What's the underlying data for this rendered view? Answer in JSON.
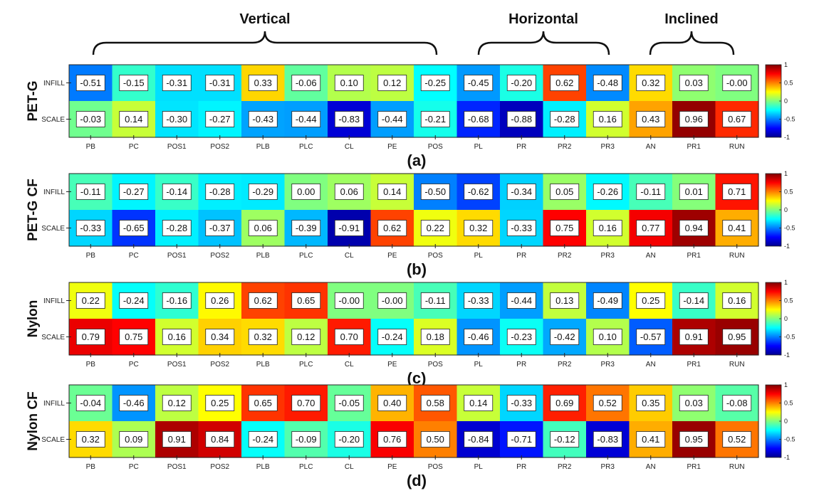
{
  "header": {
    "groups": [
      {
        "label": "Vertical"
      },
      {
        "label": "Horizontal"
      },
      {
        "label": "Inclined"
      }
    ]
  },
  "colors": {
    "colormap": "jet",
    "frame": "#222222"
  },
  "chart_data": [
    {
      "type": "heatmap",
      "panel_label": "(a)",
      "material": "PET-G",
      "x_categories": [
        "PB",
        "PC",
        "POS1",
        "POS2",
        "PLB",
        "PLC",
        "CL",
        "PE",
        "POS",
        "PL",
        "PR",
        "PR2",
        "PR3",
        "AN",
        "PR1",
        "RUN"
      ],
      "y_categories": [
        "INFILL",
        "SCALE"
      ],
      "values": [
        [
          -0.51,
          -0.15,
          -0.31,
          -0.31,
          0.33,
          -0.06,
          0.1,
          0.12,
          -0.25,
          -0.45,
          -0.2,
          0.62,
          -0.48,
          0.32,
          0.03,
          -0.0
        ],
        [
          -0.03,
          0.14,
          -0.3,
          -0.27,
          -0.43,
          -0.44,
          -0.83,
          -0.44,
          -0.21,
          -0.68,
          -0.88,
          -0.28,
          0.16,
          0.43,
          0.96,
          0.67
        ]
      ],
      "value_labels": [
        [
          "-0.51",
          "-0.15",
          "-0.31",
          "-0.31",
          "0.33",
          "-0.06",
          "0.10",
          "0.12",
          "-0.25",
          "-0.45",
          "-0.20",
          "0.62",
          "-0.48",
          "0.32",
          "0.03",
          "-0.00"
        ],
        [
          "-0.03",
          "0.14",
          "-0.30",
          "-0.27",
          "-0.43",
          "-0.44",
          "-0.83",
          "-0.44",
          "-0.21",
          "-0.68",
          "-0.88",
          "-0.28",
          "0.16",
          "0.43",
          "0.96",
          "0.67"
        ]
      ],
      "colorbar": {
        "range": [
          -1,
          1
        ],
        "ticks": [
          "1",
          "0.5",
          "0",
          "-0.5",
          "-1"
        ]
      }
    },
    {
      "type": "heatmap",
      "panel_label": "(b)",
      "material": "PET-G CF",
      "x_categories": [
        "PB",
        "PC",
        "POS1",
        "POS2",
        "PLB",
        "PLC",
        "CL",
        "PE",
        "POS",
        "PL",
        "PR",
        "PR2",
        "PR3",
        "AN",
        "PR1",
        "RUN"
      ],
      "y_categories": [
        "INFILL",
        "SCALE"
      ],
      "values": [
        [
          -0.11,
          -0.27,
          -0.14,
          -0.28,
          -0.29,
          0.0,
          0.06,
          0.14,
          -0.5,
          -0.62,
          -0.34,
          0.05,
          -0.26,
          -0.11,
          0.01,
          0.71
        ],
        [
          -0.33,
          -0.65,
          -0.28,
          -0.37,
          0.06,
          -0.39,
          -0.91,
          0.62,
          0.22,
          0.32,
          -0.33,
          0.75,
          0.16,
          0.77,
          0.94,
          0.41
        ]
      ],
      "value_labels": [
        [
          "-0.11",
          "-0.27",
          "-0.14",
          "-0.28",
          "-0.29",
          "0.00",
          "0.06",
          "0.14",
          "-0.50",
          "-0.62",
          "-0.34",
          "0.05",
          "-0.26",
          "-0.11",
          "0.01",
          "0.71"
        ],
        [
          "-0.33",
          "-0.65",
          "-0.28",
          "-0.37",
          "0.06",
          "-0.39",
          "-0.91",
          "0.62",
          "0.22",
          "0.32",
          "-0.33",
          "0.75",
          "0.16",
          "0.77",
          "0.94",
          "0.41"
        ]
      ],
      "colorbar": {
        "range": [
          -1,
          1
        ],
        "ticks": [
          "1",
          "0.5",
          "0",
          "-0.5",
          "-1"
        ]
      }
    },
    {
      "type": "heatmap",
      "panel_label": "(c)",
      "material": "Nylon",
      "x_categories": [
        "PB",
        "PC",
        "POS1",
        "POS2",
        "PLB",
        "PLC",
        "CL",
        "PE",
        "POS",
        "PL",
        "PR",
        "PR2",
        "PR3",
        "AN",
        "PR1",
        "RUN"
      ],
      "y_categories": [
        "INFILL",
        "SCALE"
      ],
      "values": [
        [
          0.22,
          -0.24,
          -0.16,
          0.26,
          0.62,
          0.65,
          -0.0,
          -0.0,
          -0.11,
          -0.33,
          -0.44,
          0.13,
          -0.49,
          0.25,
          -0.14,
          0.16
        ],
        [
          0.79,
          0.75,
          0.16,
          0.34,
          0.32,
          0.12,
          0.7,
          -0.24,
          0.18,
          -0.46,
          -0.23,
          -0.42,
          0.1,
          -0.57,
          0.91,
          0.95
        ]
      ],
      "value_labels": [
        [
          "0.22",
          "-0.24",
          "-0.16",
          "0.26",
          "0.62",
          "0.65",
          "-0.00",
          "-0.00",
          "-0.11",
          "-0.33",
          "-0.44",
          "0.13",
          "-0.49",
          "0.25",
          "-0.14",
          "0.16"
        ],
        [
          "0.79",
          "0.75",
          "0.16",
          "0.34",
          "0.32",
          "0.12",
          "0.70",
          "-0.24",
          "0.18",
          "-0.46",
          "-0.23",
          "-0.42",
          "0.10",
          "-0.57",
          "0.91",
          "0.95"
        ]
      ],
      "colorbar": {
        "range": [
          -1,
          1
        ],
        "ticks": [
          "1",
          "0.5",
          "0",
          "-0.5",
          "-1"
        ]
      }
    },
    {
      "type": "heatmap",
      "panel_label": "(d)",
      "material": "Nylon CF",
      "x_categories": [
        "PB",
        "PC",
        "POS1",
        "POS2",
        "PLB",
        "PLC",
        "CL",
        "PE",
        "POS",
        "PL",
        "PR",
        "PR2",
        "PR3",
        "AN",
        "PR1",
        "RUN"
      ],
      "y_categories": [
        "INFILL",
        "SCALE"
      ],
      "values": [
        [
          -0.04,
          -0.46,
          0.12,
          0.25,
          0.65,
          0.7,
          -0.05,
          0.4,
          0.58,
          0.14,
          -0.33,
          0.69,
          0.52,
          0.35,
          0.03,
          -0.08
        ],
        [
          0.32,
          0.09,
          0.91,
          0.84,
          -0.24,
          -0.09,
          -0.2,
          0.76,
          0.5,
          -0.84,
          -0.71,
          -0.12,
          -0.83,
          0.41,
          0.95,
          0.52
        ]
      ],
      "value_labels": [
        [
          "-0.04",
          "-0.46",
          "0.12",
          "0.25",
          "0.65",
          "0.70",
          "-0.05",
          "0.40",
          "0.58",
          "0.14",
          "-0.33",
          "0.69",
          "0.52",
          "0.35",
          "0.03",
          "-0.08"
        ],
        [
          "0.32",
          "0.09",
          "0.91",
          "0.84",
          "-0.24",
          "-0.09",
          "-0.20",
          "0.76",
          "0.50",
          "-0.84",
          "-0.71",
          "-0.12",
          "-0.83",
          "0.41",
          "0.95",
          "0.52"
        ]
      ],
      "colorbar": {
        "range": [
          -1,
          1
        ],
        "ticks": [
          "1",
          "0.5",
          "0",
          "-0.5",
          "-1"
        ]
      }
    }
  ]
}
